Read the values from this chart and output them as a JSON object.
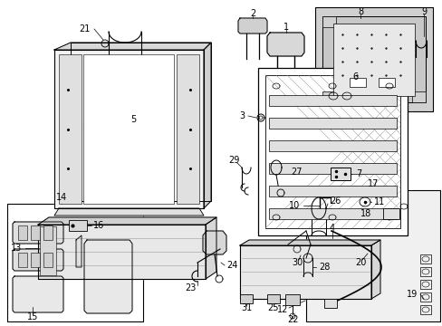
{
  "bg": "#ffffff",
  "lc": "#000000",
  "fw": 4.89,
  "fh": 3.6,
  "dpi": 100,
  "fs": 7.0
}
